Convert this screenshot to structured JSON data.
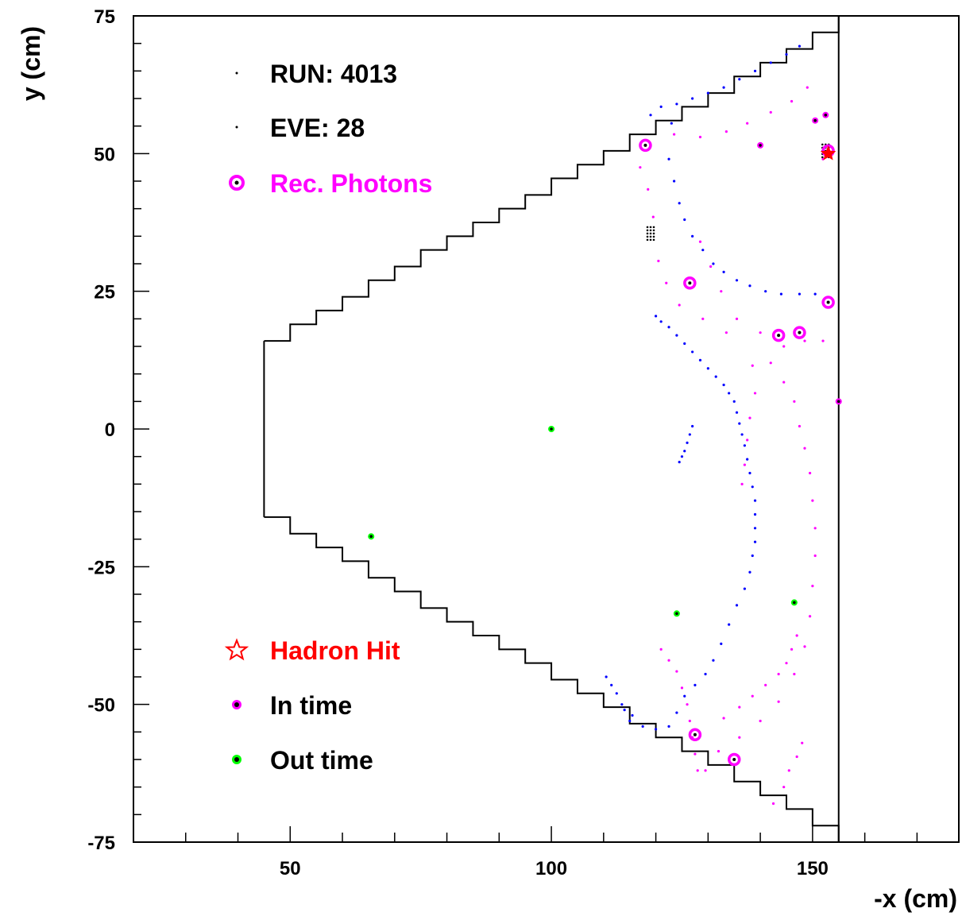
{
  "chart_data": {
    "type": "scatter",
    "title": "",
    "xlabel": "-x (cm)",
    "ylabel": "y (cm)",
    "xlim": [
      20,
      178
    ],
    "ylim": [
      -75,
      75
    ],
    "x_ticks": [
      50,
      100,
      150
    ],
    "y_ticks": [
      -75,
      -50,
      -25,
      0,
      25,
      50,
      75
    ],
    "grid": false,
    "legend": [
      {
        "label": "RUN: 4013",
        "marker": "point",
        "color": "#000000"
      },
      {
        "label": "EVE: 28",
        "marker": "point",
        "color": "#000000"
      },
      {
        "label": "Rec. Photons",
        "marker": "open-circle-dot",
        "color": "#ff00ff"
      },
      {
        "label": "Hadron Hit",
        "marker": "open-star",
        "color": "#ff0000"
      },
      {
        "label": "In time",
        "marker": "filled-circle-dot",
        "color": "#ff00ff"
      },
      {
        "label": "Out time",
        "marker": "filled-circle-dot",
        "color": "#00ff00"
      }
    ],
    "colors": {
      "in_time_ring": "#ff00ff",
      "ring_blue": "#0000ff",
      "out_time": "#00ff00",
      "hadron": "#ff0000",
      "detector": "#000000"
    },
    "series": [
      {
        "name": "Rec. Photons",
        "points": [
          [
            118,
            51.5
          ],
          [
            126.5,
            26.5
          ],
          [
            153,
            23
          ],
          [
            143.5,
            17
          ],
          [
            147.5,
            17.5
          ],
          [
            127.5,
            -55.5
          ],
          [
            135,
            -60
          ],
          [
            153,
            50.5
          ]
        ]
      },
      {
        "name": "Hadron Hit",
        "points": [
          [
            153,
            50
          ]
        ]
      },
      {
        "name": "In time",
        "points": [
          [
            140,
            51.5
          ],
          [
            150.5,
            56
          ],
          [
            152.5,
            57
          ],
          [
            155,
            5
          ]
        ]
      },
      {
        "name": "Out time",
        "points": [
          [
            100,
            0
          ],
          [
            65.5,
            -19.5
          ],
          [
            124,
            -33.5
          ],
          [
            146.5,
            -31.5
          ]
        ]
      }
    ],
    "detector_outline": {
      "x_left": 45,
      "x_right": 155,
      "x_mid": 150,
      "y_inner": 16,
      "y_outer": 75,
      "steps": [
        [
          45,
          16
        ],
        [
          50,
          19
        ],
        [
          55,
          21.5
        ],
        [
          60,
          24
        ],
        [
          65,
          27
        ],
        [
          70,
          29.5
        ],
        [
          75,
          32.5
        ],
        [
          80,
          35
        ],
        [
          85,
          37.5
        ],
        [
          90,
          40
        ],
        [
          95,
          42.5
        ],
        [
          100,
          45.5
        ],
        [
          105,
          48
        ],
        [
          110,
          50.5
        ],
        [
          115,
          53.5
        ],
        [
          120,
          56
        ],
        [
          125,
          58.5
        ],
        [
          130,
          61
        ],
        [
          135,
          64
        ],
        [
          140,
          66.5
        ],
        [
          145,
          69
        ],
        [
          150,
          72
        ],
        [
          155,
          75
        ]
      ]
    },
    "cluster_points": [
      [
        152.5,
        50.5
      ],
      [
        119,
        35.5
      ]
    ],
    "magenta_hits": [
      [
        152,
        49
      ],
      [
        149,
        62
      ],
      [
        146,
        59.5
      ],
      [
        142,
        57.5
      ],
      [
        137.5,
        55.5
      ],
      [
        133.5,
        54
      ],
      [
        128.5,
        53
      ],
      [
        123.5,
        53.5
      ],
      [
        117,
        47.5
      ],
      [
        118.5,
        43.5
      ],
      [
        119.5,
        38.5
      ],
      [
        120.5,
        30.5
      ],
      [
        122,
        26.5
      ],
      [
        124.5,
        22.5
      ],
      [
        129,
        20
      ],
      [
        133.5,
        17.5
      ],
      [
        128.5,
        34
      ],
      [
        130.5,
        29.5
      ],
      [
        132.5,
        25
      ],
      [
        135.5,
        20
      ],
      [
        140,
        17.5
      ],
      [
        144.5,
        15
      ],
      [
        148.5,
        16
      ],
      [
        152,
        16
      ],
      [
        138.5,
        11.5
      ],
      [
        139,
        6.5
      ],
      [
        138,
        2
      ],
      [
        137.5,
        -2
      ],
      [
        137,
        -6.5
      ],
      [
        136.5,
        -10
      ],
      [
        142,
        12
      ],
      [
        144.5,
        8.5
      ],
      [
        146.5,
        5
      ],
      [
        147.5,
        0.5
      ],
      [
        148.5,
        -3.5
      ],
      [
        149.5,
        -8
      ],
      [
        150,
        -13
      ],
      [
        150.5,
        -18
      ],
      [
        150.5,
        -23
      ],
      [
        150,
        -28.5
      ],
      [
        149.5,
        -34
      ],
      [
        148.5,
        -39.5
      ],
      [
        146.5,
        -44.5
      ],
      [
        143.5,
        -49.5
      ],
      [
        140,
        -53
      ],
      [
        136,
        -56
      ],
      [
        132,
        -58.5
      ],
      [
        129.5,
        -62
      ],
      [
        121,
        -40
      ],
      [
        122.5,
        -42
      ],
      [
        124,
        -44
      ],
      [
        125,
        -47
      ],
      [
        126,
        -50
      ],
      [
        126.5,
        -53
      ],
      [
        127,
        -56
      ],
      [
        127.5,
        -59
      ],
      [
        128,
        -62
      ],
      [
        142.5,
        -68
      ],
      [
        144.5,
        -65
      ],
      [
        145.5,
        -62
      ],
      [
        147,
        -59.5
      ],
      [
        148,
        -57
      ],
      [
        133,
        -52.5
      ],
      [
        136,
        -50.5
      ],
      [
        138.5,
        -48.5
      ],
      [
        141,
        -46.5
      ],
      [
        143.5,
        -44.5
      ],
      [
        145,
        -42.5
      ],
      [
        146,
        -40
      ],
      [
        147,
        -37.5
      ]
    ],
    "blue_hits": [
      [
        147.5,
        69.5
      ],
      [
        145,
        68
      ],
      [
        142,
        66.5
      ],
      [
        139,
        65
      ],
      [
        136,
        63.5
      ],
      [
        133,
        62
      ],
      [
        130,
        61
      ],
      [
        127,
        60
      ],
      [
        124,
        59
      ],
      [
        121,
        58.5
      ],
      [
        119,
        57
      ],
      [
        123,
        55.5
      ],
      [
        122.5,
        49
      ],
      [
        123.5,
        45
      ],
      [
        124.5,
        41
      ],
      [
        125.5,
        38
      ],
      [
        127,
        35
      ],
      [
        129,
        32.5
      ],
      [
        131,
        30
      ],
      [
        133,
        28.5
      ],
      [
        135.5,
        27
      ],
      [
        138,
        26
      ],
      [
        141,
        25
      ],
      [
        144,
        24.5
      ],
      [
        147.5,
        24.5
      ],
      [
        150.5,
        24.5
      ],
      [
        120,
        20.5
      ],
      [
        121,
        19.5
      ],
      [
        122.5,
        18.5
      ],
      [
        124,
        17
      ],
      [
        125.5,
        15.5
      ],
      [
        127,
        14
      ],
      [
        128.5,
        12.5
      ],
      [
        130,
        11
      ],
      [
        131.5,
        9.5
      ],
      [
        133,
        8
      ],
      [
        134,
        6.5
      ],
      [
        135,
        5
      ],
      [
        135.5,
        3
      ],
      [
        136,
        1
      ],
      [
        136.5,
        -1
      ],
      [
        137,
        -3
      ],
      [
        137.5,
        -5.5
      ],
      [
        138,
        -8
      ],
      [
        138.5,
        -10.5
      ],
      [
        139,
        -13
      ],
      [
        139,
        -15.5
      ],
      [
        139,
        -18
      ],
      [
        139,
        -20.5
      ],
      [
        138.5,
        -23
      ],
      [
        138,
        -26
      ],
      [
        137,
        -29
      ],
      [
        135.5,
        -32
      ],
      [
        134,
        -35.5
      ],
      [
        132.5,
        -39
      ],
      [
        131,
        -42
      ],
      [
        129.5,
        -44.5
      ],
      [
        127.5,
        -46.5
      ],
      [
        125.5,
        -48.5
      ],
      [
        124,
        -51.5
      ],
      [
        122.5,
        -54
      ],
      [
        120,
        -54.5
      ],
      [
        117.5,
        -54
      ],
      [
        115,
        -53
      ],
      [
        113.5,
        -50
      ],
      [
        112.5,
        -48
      ],
      [
        111.5,
        -46.5
      ],
      [
        110.5,
        -45
      ],
      [
        114,
        -51
      ],
      [
        115.5,
        -52
      ],
      [
        125,
        -5
      ],
      [
        125.5,
        -4
      ],
      [
        126,
        -2.5
      ],
      [
        126.5,
        -1
      ],
      [
        127,
        0.5
      ],
      [
        124.5,
        -6
      ]
    ]
  }
}
